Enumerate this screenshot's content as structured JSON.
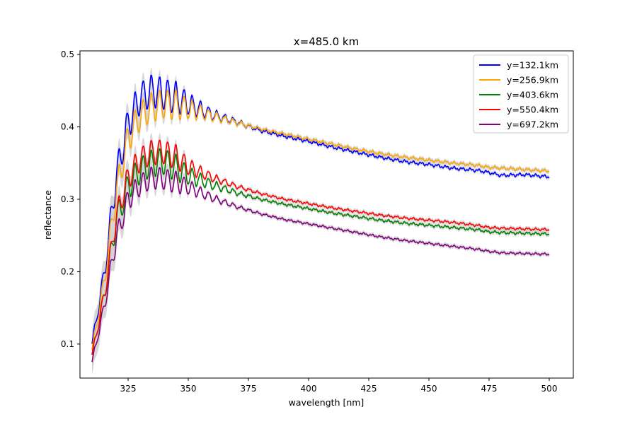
{
  "chart_data": {
    "type": "line",
    "title": "x=485.0 km",
    "xlabel": "wavelength [nm]",
    "ylabel": "reflectance",
    "xlim": [
      305,
      510
    ],
    "ylim": [
      0.053,
      0.505
    ],
    "xticks": [
      325,
      350,
      375,
      400,
      425,
      450,
      475,
      500
    ],
    "yticks": [
      0.1,
      0.2,
      0.3,
      0.4,
      0.5
    ],
    "xtick_labels": [
      "325",
      "350",
      "375",
      "400",
      "425",
      "450",
      "475",
      "500"
    ],
    "ytick_labels": [
      "0.1",
      "0.2",
      "0.3",
      "0.4",
      "0.5"
    ],
    "grid": false,
    "legend_position": "top-right",
    "uncertainty_band_color": "#d3d3d3",
    "series": [
      {
        "name": "y=132.1km",
        "color": "#0000ff",
        "x": [
          310,
          315,
          320,
          325,
          330,
          335,
          340,
          345,
          350,
          360,
          370,
          380,
          390,
          400,
          410,
          420,
          430,
          440,
          450,
          460,
          470,
          475,
          480,
          490,
          500
        ],
        "y": [
          0.1,
          0.195,
          0.33,
          0.405,
          0.44,
          0.45,
          0.445,
          0.44,
          0.432,
          0.417,
          0.407,
          0.395,
          0.387,
          0.38,
          0.372,
          0.365,
          0.358,
          0.352,
          0.348,
          0.343,
          0.34,
          0.337,
          0.333,
          0.334,
          0.331
        ]
      },
      {
        "name": "y=256.9km",
        "color": "#ffa500",
        "x": [
          310,
          315,
          320,
          325,
          330,
          335,
          340,
          345,
          350,
          360,
          370,
          380,
          390,
          400,
          410,
          420,
          430,
          440,
          450,
          460,
          470,
          475,
          480,
          490,
          500
        ],
        "y": [
          0.092,
          0.185,
          0.31,
          0.385,
          0.415,
          0.428,
          0.432,
          0.43,
          0.425,
          0.415,
          0.406,
          0.397,
          0.39,
          0.383,
          0.376,
          0.369,
          0.363,
          0.358,
          0.354,
          0.35,
          0.347,
          0.344,
          0.343,
          0.341,
          0.339
        ]
      },
      {
        "name": "y=403.6km",
        "color": "#008000",
        "x": [
          310,
          315,
          320,
          325,
          330,
          335,
          340,
          345,
          350,
          360,
          370,
          380,
          390,
          400,
          410,
          420,
          430,
          440,
          450,
          460,
          470,
          475,
          480,
          490,
          500
        ],
        "y": [
          0.085,
          0.165,
          0.27,
          0.318,
          0.34,
          0.35,
          0.352,
          0.343,
          0.333,
          0.32,
          0.309,
          0.3,
          0.293,
          0.287,
          0.281,
          0.276,
          0.271,
          0.267,
          0.264,
          0.261,
          0.258,
          0.255,
          0.254,
          0.253,
          0.252
        ]
      },
      {
        "name": "y=550.4km",
        "color": "#ff0000",
        "x": [
          310,
          315,
          320,
          325,
          330,
          335,
          340,
          345,
          350,
          360,
          370,
          380,
          390,
          400,
          410,
          420,
          430,
          440,
          450,
          460,
          470,
          475,
          480,
          490,
          500
        ],
        "y": [
          0.085,
          0.165,
          0.275,
          0.33,
          0.355,
          0.365,
          0.365,
          0.358,
          0.345,
          0.33,
          0.318,
          0.308,
          0.3,
          0.294,
          0.288,
          0.283,
          0.278,
          0.274,
          0.271,
          0.268,
          0.264,
          0.261,
          0.26,
          0.259,
          0.258
        ]
      },
      {
        "name": "y=697.2km",
        "color": "#800080",
        "x": [
          310,
          315,
          320,
          325,
          330,
          335,
          340,
          345,
          350,
          360,
          370,
          380,
          390,
          400,
          410,
          420,
          430,
          440,
          450,
          460,
          470,
          475,
          480,
          490,
          500
        ],
        "y": [
          0.075,
          0.15,
          0.245,
          0.3,
          0.32,
          0.33,
          0.328,
          0.323,
          0.317,
          0.302,
          0.29,
          0.28,
          0.272,
          0.266,
          0.26,
          0.254,
          0.248,
          0.243,
          0.239,
          0.235,
          0.231,
          0.228,
          0.226,
          0.225,
          0.224
        ]
      }
    ]
  }
}
